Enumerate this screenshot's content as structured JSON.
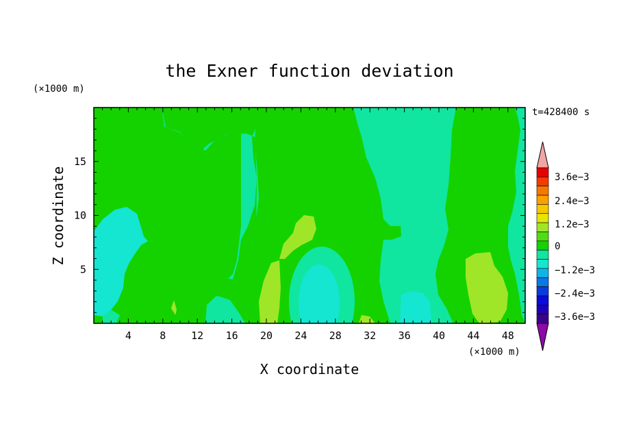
{
  "chart_data": {
    "type": "heatmap",
    "title": "the Exner function deviation",
    "time_label": "t=428400 s",
    "xlabel": "X coordinate",
    "ylabel": "Z coordinate",
    "x_unit": "(×1000 m)",
    "y_unit": "(×1000 m)",
    "xlim": [
      0,
      50
    ],
    "ylim": [
      0,
      20
    ],
    "x_ticks": [
      "4",
      "8",
      "12",
      "16",
      "20",
      "24",
      "28",
      "32",
      "36",
      "40",
      "44",
      "48"
    ],
    "y_ticks": [
      "5",
      "10",
      "15"
    ],
    "colorbar": {
      "labels": [
        "3.6e−3",
        "2.4e−3",
        "1.2e−3",
        "0",
        "−1.2e−3",
        "−2.4e−3",
        "−3.6e−3"
      ],
      "top_extend_color": "#f2a5a5",
      "bottom_extend_color": "#8c0aa6",
      "colors": [
        "#e60000",
        "#f03c00",
        "#f57800",
        "#faa000",
        "#f5c800",
        "#e6e600",
        "#a0e628",
        "#50dc14",
        "#14d200",
        "#10e6a0",
        "#14e6d2",
        "#0fb4e6",
        "#0a78e6",
        "#0a3cdc",
        "#0a0adc",
        "#1e00b4",
        "#3c008c"
      ]
    },
    "regions": [
      {
        "level": "0 to 0.6e-3",
        "color": "#14d200"
      },
      {
        "level": "-0.6e-3 to 0",
        "color": "#10e6a0"
      },
      {
        "level": "-1.2e-3 to -0.6e-3",
        "color": "#14e6d2"
      },
      {
        "level": "0.6e-3 to 1.2e-3",
        "color": "#a0e628"
      }
    ]
  }
}
